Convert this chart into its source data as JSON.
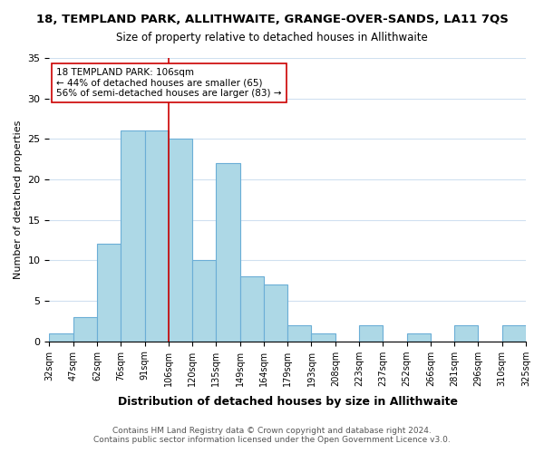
{
  "title": "18, TEMPLAND PARK, ALLITHWAITE, GRANGE-OVER-SANDS, LA11 7QS",
  "subtitle": "Size of property relative to detached houses in Allithwaite",
  "xlabel": "Distribution of detached houses by size in Allithwaite",
  "ylabel": "Number of detached properties",
  "bin_edges": [
    "32sqm",
    "47sqm",
    "62sqm",
    "76sqm",
    "91sqm",
    "106sqm",
    "120sqm",
    "135sqm",
    "149sqm",
    "164sqm",
    "179sqm",
    "193sqm",
    "208sqm",
    "223sqm",
    "237sqm",
    "252sqm",
    "266sqm",
    "281sqm",
    "296sqm",
    "310sqm",
    "325sqm"
  ],
  "bar_values": [
    1,
    3,
    12,
    26,
    26,
    25,
    10,
    22,
    8,
    7,
    2,
    1,
    0,
    2,
    0,
    1,
    0,
    2,
    0,
    2
  ],
  "bar_color": "#add8e6",
  "bar_edge_color": "#6baed6",
  "marker_label": "18 TEMPLAND PARK: 106sqm",
  "annotation_line1": "← 44% of detached houses are smaller (65)",
  "annotation_line2": "56% of semi-detached houses are larger (83) →",
  "vline_color": "#cc0000",
  "ylim": [
    0,
    35
  ],
  "yticks": [
    0,
    5,
    10,
    15,
    20,
    25,
    30,
    35
  ],
  "footer_line1": "Contains HM Land Registry data © Crown copyright and database right 2024.",
  "footer_line2": "Contains public sector information licensed under the Open Government Licence v3.0.",
  "background_color": "#ffffff",
  "grid_color": "#d0e0f0"
}
